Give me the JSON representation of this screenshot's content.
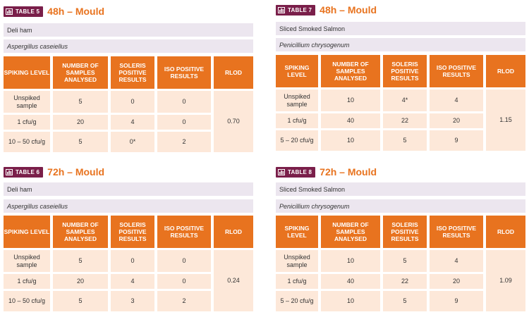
{
  "tables": [
    {
      "badge": "TABLE 5",
      "title": "48h – Mould",
      "food": "Deli ham",
      "organism": "Aspergillus caseiellus",
      "headers": [
        "SPIKING LEVEL",
        "NUMBER OF SAMPLES ANALYSED",
        "SOLERIS POSITIVE RESULTS",
        "ISO POSITIVE RESULTS",
        "RLOD"
      ],
      "rows": [
        [
          "Unspiked sample",
          "5",
          "0",
          "0"
        ],
        [
          "1 cfu/g",
          "20",
          "4",
          "0"
        ],
        [
          "10 – 50 cfu/g",
          "5",
          "0*",
          "2"
        ]
      ],
      "rlod": "0.70"
    },
    {
      "badge": "TABLE 7",
      "title": "48h – Mould",
      "food": "Sliced Smoked Salmon",
      "organism": "Penicillium chrysogenum",
      "headers": [
        "SPIKING LEVEL",
        "NUMBER OF SAMPLES ANALYSED",
        "SOLERIS POSITIVE RESULTS",
        "ISO POSITIVE RESULTS",
        "RLOD"
      ],
      "rows": [
        [
          "Unspiked sample",
          "10",
          "4*",
          "4"
        ],
        [
          "1 cfu/g",
          "40",
          "22",
          "20"
        ],
        [
          "5 – 20 cfu/g",
          "10",
          "5",
          "9"
        ]
      ],
      "rlod": "1.15"
    },
    {
      "badge": "TABLE 6",
      "title": "72h – Mould",
      "food": "Deli ham",
      "organism": "Aspergillus caseiellus",
      "headers": [
        "SPIKING LEVEL",
        "NUMBER OF SAMPLES ANALYSED",
        "SOLERIS POSITIVE RESULTS",
        "ISO POSITIVE RESULTS",
        "RLOD"
      ],
      "rows": [
        [
          "Unspiked sample",
          "5",
          "0",
          "0"
        ],
        [
          "1 cfu/g",
          "20",
          "4",
          "0"
        ],
        [
          "10 – 50 cfu/g",
          "5",
          "3",
          "2"
        ]
      ],
      "rlod": "0.24"
    },
    {
      "badge": "TABLE 8",
      "title": "72h – Mould",
      "food": "Sliced Smoked Salmon",
      "organism": "Penicillium chrysogenum",
      "headers": [
        "SPIKING LEVEL",
        "NUMBER OF SAMPLES ANALYSED",
        "SOLERIS POSITIVE RESULTS",
        "ISO POSITIVE RESULTS",
        "RLOD"
      ],
      "rows": [
        [
          "Unspiked sample",
          "10",
          "5",
          "4"
        ],
        [
          "1 cfu/g",
          "40",
          "22",
          "20"
        ],
        [
          "5 – 20 cfu/g",
          "10",
          "5",
          "9"
        ]
      ],
      "rlod": "1.09"
    }
  ]
}
